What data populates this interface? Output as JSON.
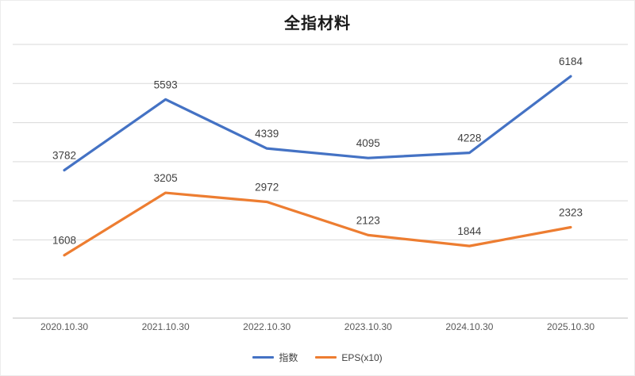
{
  "title": "全指材料",
  "chart_data": {
    "type": "line",
    "title": "全指材料",
    "categories": [
      "2020.10.30",
      "2021.10.30",
      "2022.10.30",
      "2023.10.30",
      "2024.10.30",
      "2025.10.30"
    ],
    "series": [
      {
        "name": "指数",
        "color": "#4472C4",
        "values": [
          3782,
          5593,
          4339,
          4095,
          4228,
          6184
        ]
      },
      {
        "name": "EPS(x10)",
        "color": "#ED7D31",
        "values": [
          1608,
          3205,
          2972,
          2123,
          1844,
          2323
        ]
      }
    ],
    "ylim": [
      0,
      7000
    ],
    "grid_step": 1000,
    "grid": true,
    "legend_position": "bottom",
    "data_labels": true,
    "colors": {
      "grid": "#D9D9D9",
      "axis": "#BFBFBF",
      "label_text": "#404040",
      "tick_text": "#595959"
    }
  }
}
